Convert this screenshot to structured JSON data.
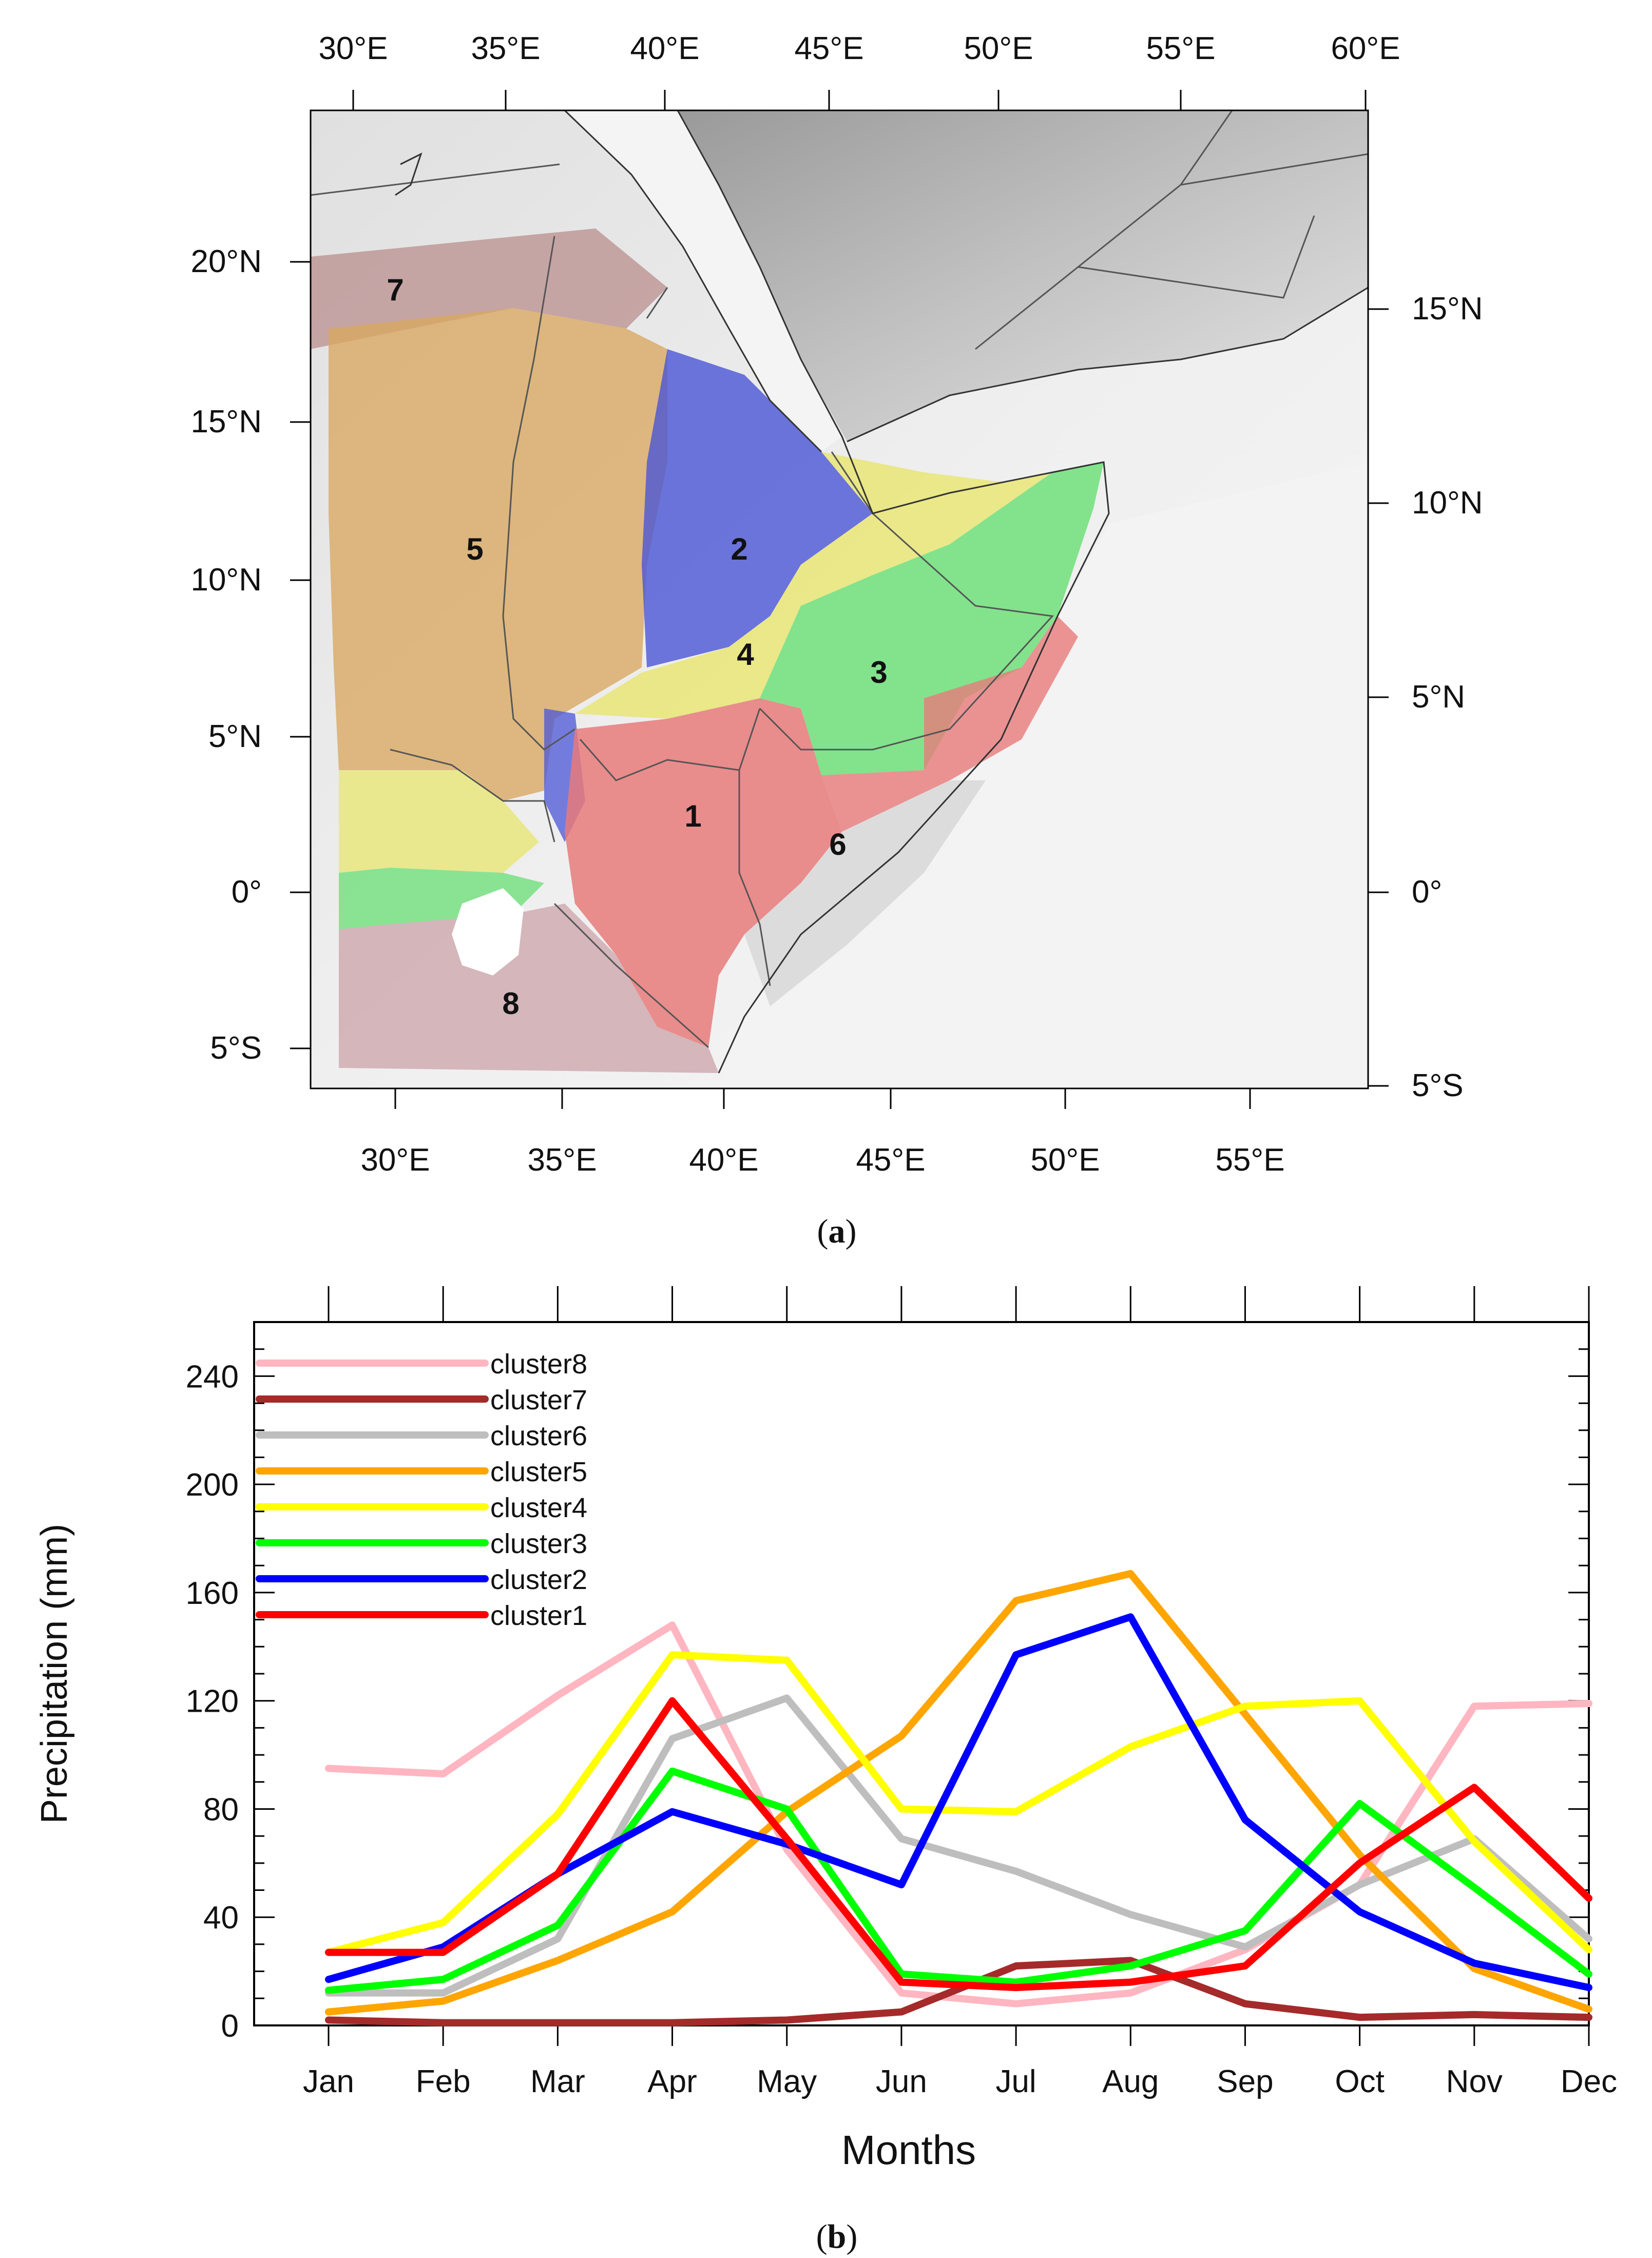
{
  "panel_a": {
    "caption": "a",
    "top_lon_labels": [
      "30°E",
      "35°E",
      "40°E",
      "45°E",
      "50°E",
      "55°E",
      "60°E"
    ],
    "bottom_lon_labels": [
      "30°E",
      "35°E",
      "40°E",
      "45°E",
      "50°E",
      "55°E"
    ],
    "left_lat_labels": [
      "20°N",
      "15°N",
      "10°N",
      "5°N",
      "0°",
      "5°S"
    ],
    "right_lat_labels": [
      "15°N",
      "10°N",
      "5°N",
      "0°",
      "5°S"
    ],
    "regions": [
      {
        "id": "1",
        "color": "#e87a7a"
      },
      {
        "id": "2",
        "color": "#4a55d6"
      },
      {
        "id": "3",
        "color": "#6fe07a"
      },
      {
        "id": "4",
        "color": "#e8e66a"
      },
      {
        "id": "5",
        "color": "#d8a860"
      },
      {
        "id": "6",
        "color": "#d9d9d9"
      },
      {
        "id": "7",
        "color": "#b98a8a"
      },
      {
        "id": "8",
        "color": "#c9a0a6"
      }
    ]
  },
  "chart_data": {
    "type": "line",
    "caption": "b",
    "xlabel": "Months",
    "ylabel": "Precipitation (mm)",
    "categories": [
      "Jan",
      "Feb",
      "Mar",
      "Apr",
      "May",
      "Jun",
      "Jul",
      "Aug",
      "Sep",
      "Oct",
      "Nov",
      "Dec"
    ],
    "ylim": [
      0,
      260
    ],
    "yticks": [
      "0",
      "40",
      "80",
      "120",
      "160",
      "200",
      "240"
    ],
    "legend_position": "top-left",
    "series": [
      {
        "name": "cluster8",
        "color": "#ffb6c1",
        "values": [
          95,
          93,
          122,
          148,
          65,
          12,
          8,
          12,
          28,
          52,
          118,
          119
        ]
      },
      {
        "name": "cluster7",
        "color": "#a52a2a",
        "values": [
          2,
          1,
          1,
          1,
          2,
          5,
          22,
          24,
          8,
          3,
          4,
          3
        ]
      },
      {
        "name": "cluster6",
        "color": "#bebebe",
        "values": [
          12,
          12,
          32,
          106,
          121,
          69,
          57,
          41,
          29,
          52,
          69,
          32
        ]
      },
      {
        "name": "cluster5",
        "color": "#ffa500",
        "values": [
          5,
          9,
          24,
          42,
          79,
          107,
          157,
          167,
          115,
          63,
          21,
          6
        ]
      },
      {
        "name": "cluster4",
        "color": "#ffff00",
        "values": [
          27,
          38,
          78,
          137,
          135,
          80,
          79,
          103,
          118,
          120,
          68,
          28
        ]
      },
      {
        "name": "cluster3",
        "color": "#00ff00",
        "values": [
          13,
          17,
          37,
          94,
          80,
          19,
          16,
          22,
          35,
          82,
          51,
          19
        ]
      },
      {
        "name": "cluster2",
        "color": "#0000ff",
        "values": [
          17,
          29,
          56,
          79,
          67,
          52,
          137,
          151,
          76,
          42,
          23,
          14
        ]
      },
      {
        "name": "cluster1",
        "color": "#ff0000",
        "values": [
          27,
          27,
          56,
          120,
          69,
          16,
          14,
          16,
          22,
          60,
          88,
          47
        ]
      }
    ]
  }
}
